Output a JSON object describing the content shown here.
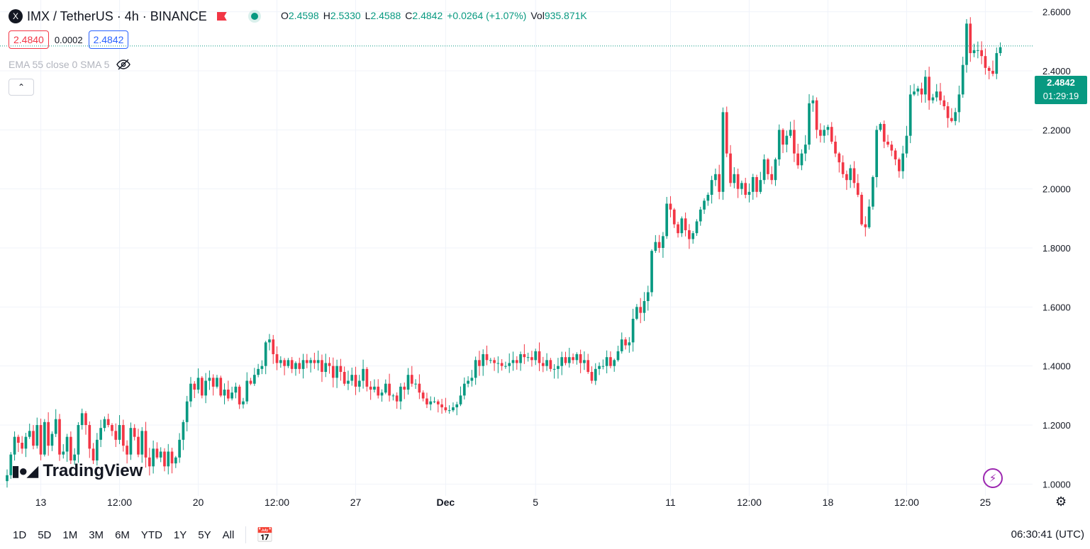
{
  "header": {
    "symbol": "IMX / TetherUS · 4h · BINANCE",
    "logo": "X",
    "ohlc": {
      "o_label": "O",
      "o": "2.4598",
      "h_label": "H",
      "h": "2.5330",
      "l_label": "L",
      "l": "2.4588",
      "c_label": "C",
      "c": "2.4842",
      "change": "+0.0264 (+1.07%)",
      "vol_label": "Vol",
      "vol": "935.871K"
    }
  },
  "quotes": {
    "sell": "2.4840",
    "spread": "0.0002",
    "buy": "2.4842"
  },
  "indicator": {
    "label": "EMA 55 close 0 SMA 5",
    "icon": "eye-off-icon"
  },
  "current_price": {
    "price": "2.4842",
    "countdown": "01:29:19"
  },
  "branding": {
    "name": "TradingView"
  },
  "bottom_bar": {
    "ranges": [
      "1D",
      "5D",
      "1M",
      "3M",
      "6M",
      "YTD",
      "1Y",
      "5Y",
      "All"
    ],
    "clock": "06:30:41 (UTC)"
  },
  "colors": {
    "up": "#089981",
    "down": "#f23645",
    "grid": "#f0f3fa",
    "text": "#131722"
  },
  "chart_data": {
    "type": "candlestick",
    "ylim": [
      0.96,
      2.64
    ],
    "y_ticks": [
      "1.0000",
      "1.2000",
      "1.4000",
      "1.6000",
      "1.8000",
      "2.0000",
      "2.2000",
      "2.4000",
      "2.6000"
    ],
    "y_tick_values": [
      1.0,
      1.2,
      1.4,
      1.6,
      1.8,
      2.0,
      2.2,
      2.4,
      2.6
    ],
    "x_ticks": [
      {
        "label": "13",
        "bar": 9,
        "bold": false
      },
      {
        "label": "12:00",
        "bar": 30,
        "bold": false
      },
      {
        "label": "20",
        "bar": 51,
        "bold": false
      },
      {
        "label": "12:00",
        "bar": 72,
        "bold": false
      },
      {
        "label": "27",
        "bar": 93,
        "bold": false
      },
      {
        "label": "Dec",
        "bar": 117,
        "bold": true
      },
      {
        "label": "5",
        "bar": 141,
        "bold": false
      },
      {
        "label": "11",
        "bar": 177,
        "bold": false
      },
      {
        "label": "12:00",
        "bar": 198,
        "bold": false
      },
      {
        "label": "18",
        "bar": 219,
        "bold": false
      },
      {
        "label": "12:00",
        "bar": 240,
        "bold": false
      },
      {
        "label": "25",
        "bar": 261,
        "bold": false
      }
    ],
    "bar_count": 264,
    "closes": [
      1.03,
      1.1,
      1.16,
      1.14,
      1.12,
      1.16,
      1.18,
      1.13,
      1.2,
      1.1,
      1.21,
      1.13,
      1.17,
      1.22,
      1.1,
      1.11,
      1.16,
      1.08,
      1.1,
      1.2,
      1.24,
      1.2,
      1.12,
      1.08,
      1.15,
      1.19,
      1.22,
      1.2,
      1.18,
      1.15,
      1.2,
      1.13,
      1.1,
      1.19,
      1.16,
      1.1,
      1.18,
      1.09,
      1.06,
      1.12,
      1.09,
      1.11,
      1.06,
      1.11,
      1.07,
      1.09,
      1.15,
      1.21,
      1.28,
      1.34,
      1.32,
      1.36,
      1.3,
      1.35,
      1.36,
      1.33,
      1.36,
      1.3,
      1.32,
      1.29,
      1.31,
      1.33,
      1.27,
      1.28,
      1.35,
      1.34,
      1.37,
      1.39,
      1.4,
      1.48,
      1.49,
      1.44,
      1.41,
      1.42,
      1.4,
      1.42,
      1.39,
      1.41,
      1.39,
      1.42,
      1.41,
      1.42,
      1.41,
      1.42,
      1.38,
      1.41,
      1.4,
      1.36,
      1.4,
      1.38,
      1.34,
      1.35,
      1.37,
      1.33,
      1.35,
      1.39,
      1.33,
      1.32,
      1.33,
      1.3,
      1.31,
      1.34,
      1.3,
      1.3,
      1.28,
      1.33,
      1.32,
      1.37,
      1.34,
      1.34,
      1.31,
      1.29,
      1.27,
      1.28,
      1.28,
      1.27,
      1.26,
      1.25,
      1.25,
      1.26,
      1.27,
      1.3,
      1.34,
      1.35,
      1.36,
      1.42,
      1.4,
      1.44,
      1.42,
      1.42,
      1.41,
      1.41,
      1.4,
      1.4,
      1.41,
      1.42,
      1.41,
      1.44,
      1.43,
      1.43,
      1.42,
      1.45,
      1.41,
      1.4,
      1.42,
      1.39,
      1.39,
      1.4,
      1.43,
      1.41,
      1.43,
      1.42,
      1.44,
      1.41,
      1.42,
      1.38,
      1.35,
      1.39,
      1.4,
      1.4,
      1.43,
      1.4,
      1.42,
      1.45,
      1.49,
      1.47,
      1.48,
      1.56,
      1.6,
      1.58,
      1.62,
      1.65,
      1.79,
      1.82,
      1.8,
      1.84,
      1.95,
      1.93,
      1.88,
      1.85,
      1.9,
      1.86,
      1.83,
      1.85,
      1.89,
      1.93,
      1.96,
      1.98,
      2.03,
      2.05,
      1.99,
      2.26,
      2.12,
      2.02,
      2.05,
      2.0,
      2.02,
      1.98,
      1.99,
      2.04,
      1.99,
      2.03,
      2.1,
      2.05,
      2.03,
      2.1,
      2.2,
      2.15,
      2.18,
      2.2,
      2.12,
      2.08,
      2.12,
      2.15,
      2.29,
      2.3,
      2.2,
      2.18,
      2.2,
      2.21,
      2.16,
      2.12,
      2.09,
      2.05,
      2.03,
      2.07,
      2.02,
      1.98,
      1.88,
      1.87,
      1.94,
      2.04,
      2.2,
      2.22,
      2.16,
      2.15,
      2.13,
      2.1,
      2.06,
      2.12,
      2.18,
      2.32,
      2.33,
      2.34,
      2.32,
      2.38,
      2.3,
      2.31,
      2.33,
      2.3,
      2.28,
      2.24,
      2.23,
      2.26,
      2.32,
      2.42,
      2.56,
      2.46,
      2.47,
      2.47,
      2.45,
      2.41,
      2.4,
      2.39,
      2.46,
      2.48
    ]
  }
}
